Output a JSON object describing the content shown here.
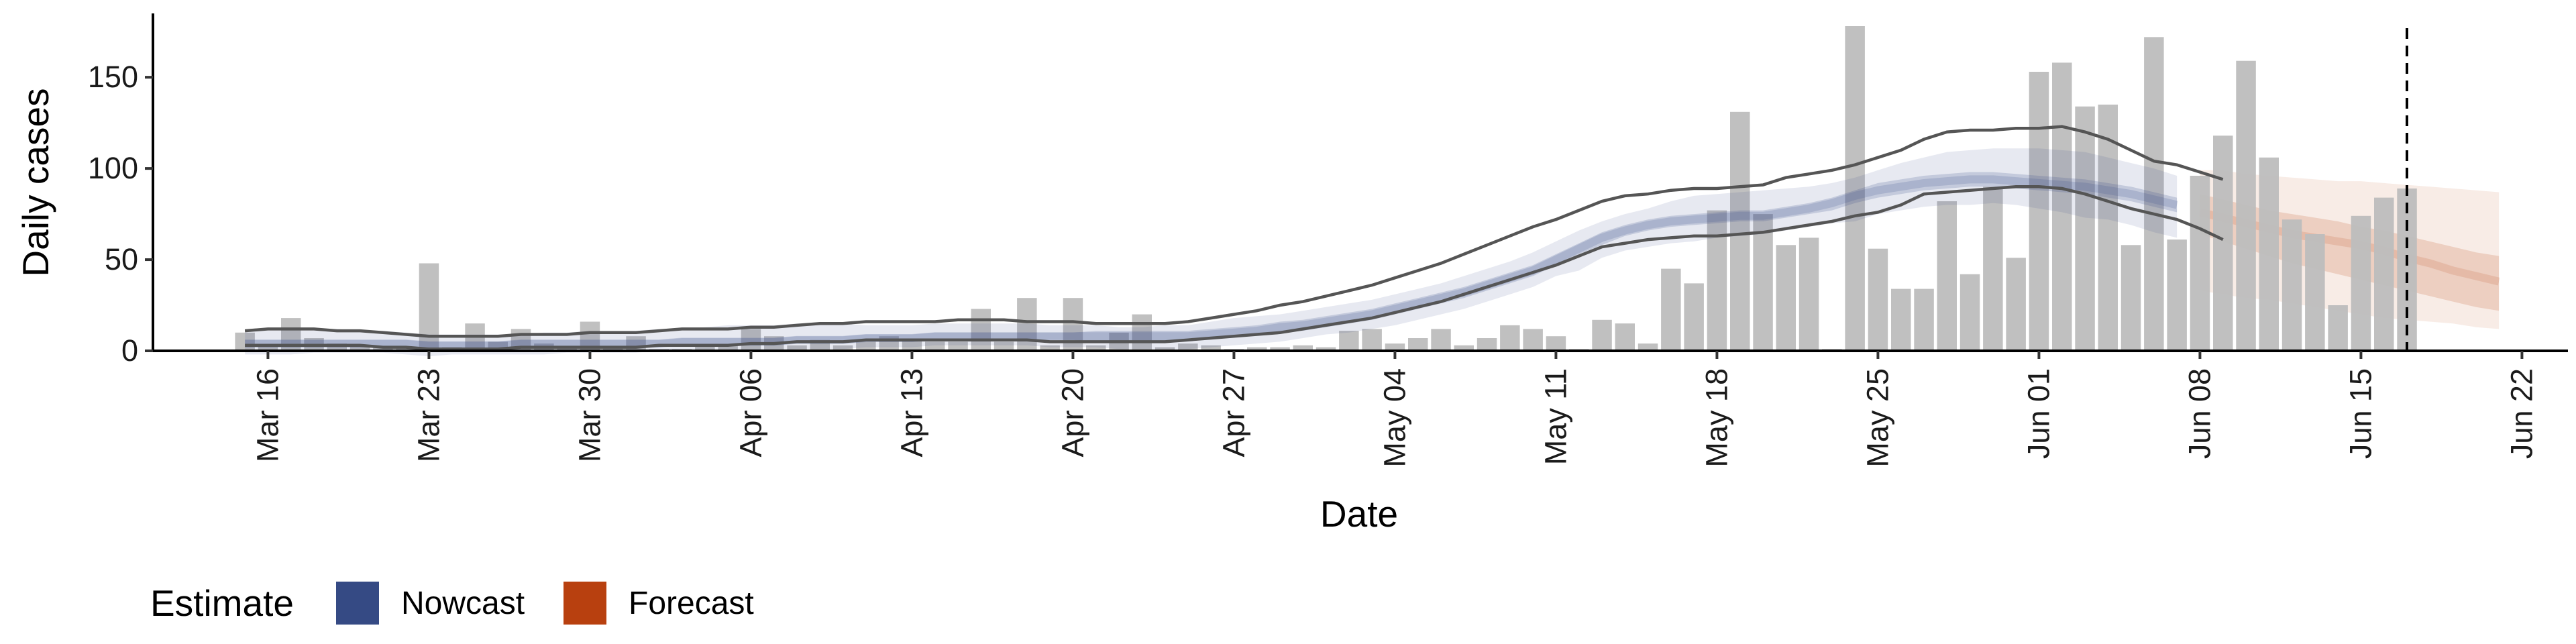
{
  "chart_data": {
    "type": "bar",
    "xlabel": "Date",
    "ylabel": "Daily cases",
    "ylim": [
      0,
      185
    ],
    "yticks": [
      0,
      50,
      100,
      150
    ],
    "xlim": [
      "2020-03-11",
      "2020-06-24"
    ],
    "xticks": [
      "2020-03-16",
      "2020-03-23",
      "2020-03-30",
      "2020-04-06",
      "2020-04-13",
      "2020-04-20",
      "2020-04-27",
      "2020-05-04",
      "2020-05-11",
      "2020-05-18",
      "2020-05-25",
      "2020-06-01",
      "2020-06-08",
      "2020-06-15",
      "2020-06-22"
    ],
    "xtick_labels": [
      "Mar 16",
      "Mar 23",
      "Mar 30",
      "Apr 06",
      "Apr 13",
      "Apr 20",
      "Apr 27",
      "May 04",
      "May 11",
      "May 18",
      "May 25",
      "Jun 01",
      "Jun 08",
      "Jun 15",
      "Jun 22"
    ],
    "grid": false,
    "bar_color": "#bdbdbd",
    "cases": {
      "start_date": "2020-03-15",
      "values": [
        10,
        3,
        18,
        7,
        4,
        3,
        2,
        2,
        48,
        2,
        15,
        5,
        12,
        4,
        2,
        16,
        2,
        8,
        1,
        1,
        3,
        3,
        12,
        8,
        3,
        6,
        3,
        5,
        8,
        6,
        5,
        5,
        23,
        5,
        29,
        3,
        29,
        3,
        10,
        20,
        2,
        4,
        3,
        1,
        2,
        2,
        3,
        2,
        11,
        12,
        4,
        7,
        12,
        3,
        7,
        14,
        12,
        8,
        1,
        17,
        15,
        4,
        45,
        37,
        77,
        131,
        75,
        58,
        62,
        1,
        178,
        56,
        34,
        34,
        82,
        42,
        90,
        51,
        153,
        158,
        134,
        135,
        58,
        172,
        61,
        96,
        118,
        159,
        106,
        72,
        64,
        25,
        74,
        84,
        89
      ]
    },
    "nowcast": {
      "start_date": "2020-03-15",
      "color": "#3a4e8c",
      "median": [
        4,
        4,
        4,
        4,
        4,
        4,
        4,
        4,
        3,
        3,
        3,
        3,
        4,
        4,
        4,
        4,
        4,
        4,
        4,
        5,
        5,
        5,
        5,
        5,
        6,
        6,
        6,
        7,
        7,
        7,
        8,
        8,
        8,
        8,
        8,
        8,
        8,
        8,
        8,
        8,
        8,
        8,
        9,
        10,
        11,
        13,
        14,
        16,
        18,
        20,
        23,
        26,
        29,
        32,
        36,
        40,
        44,
        50,
        56,
        62,
        66,
        69,
        71,
        72,
        73,
        74,
        74,
        76,
        78,
        81,
        85,
        88,
        90,
        92,
        93,
        94,
        94,
        93,
        92,
        91,
        90,
        88,
        86,
        83,
        80
      ],
      "lower90": [
        -2,
        -2,
        -2,
        -1,
        -1,
        -1,
        -1,
        -2,
        -3,
        -2,
        -2,
        -2,
        -2,
        -2,
        -1,
        -1,
        -1,
        -1,
        0,
        1,
        1,
        1,
        0,
        0,
        1,
        1,
        1,
        2,
        2,
        2,
        3,
        3,
        3,
        3,
        3,
        2,
        2,
        2,
        1,
        1,
        1,
        1,
        2,
        3,
        4,
        5,
        7,
        9,
        10,
        12,
        14,
        17,
        20,
        23,
        27,
        31,
        35,
        41,
        44,
        51,
        55,
        57,
        59,
        60,
        62,
        63,
        64,
        66,
        68,
        70,
        71,
        75,
        77,
        79,
        80,
        80,
        81,
        80,
        78,
        76,
        73,
        72,
        69,
        65,
        62
      ],
      "upper90": [
        11,
        12,
        12,
        12,
        12,
        11,
        11,
        10,
        9,
        9,
        9,
        9,
        9,
        10,
        10,
        11,
        11,
        11,
        12,
        12,
        13,
        14,
        14,
        14,
        15,
        15,
        15,
        14,
        14,
        14,
        15,
        15,
        15,
        15,
        15,
        14,
        14,
        14,
        13,
        13,
        14,
        14,
        16,
        18,
        19,
        20,
        22,
        24,
        26,
        28,
        31,
        34,
        37,
        41,
        45,
        49,
        54,
        60,
        66,
        71,
        75,
        78,
        82,
        85,
        86,
        87,
        88,
        89,
        90,
        92,
        95,
        99,
        103,
        106,
        109,
        110,
        111,
        111,
        111,
        110,
        109,
        106,
        103,
        100,
        96
      ],
      "lower30": [
        2,
        2,
        2,
        2,
        2,
        2,
        2,
        2,
        1,
        1,
        1,
        1,
        2,
        2,
        2,
        2,
        2,
        2,
        2,
        3,
        3,
        3,
        3,
        3,
        4,
        4,
        4,
        5,
        5,
        5,
        6,
        6,
        6,
        6,
        6,
        6,
        6,
        5,
        5,
        5,
        5,
        6,
        7,
        8,
        9,
        10,
        11,
        13,
        15,
        17,
        20,
        23,
        26,
        29,
        33,
        37,
        41,
        47,
        53,
        58,
        63,
        66,
        68,
        69,
        70,
        71,
        71,
        73,
        75,
        77,
        81,
        84,
        86,
        88,
        89,
        90,
        90,
        89,
        88,
        87,
        86,
        84,
        82,
        79,
        76
      ],
      "upper30": [
        6,
        6,
        6,
        6,
        6,
        6,
        6,
        6,
        5,
        5,
        5,
        5,
        6,
        6,
        6,
        6,
        6,
        6,
        6,
        7,
        7,
        7,
        7,
        7,
        8,
        8,
        8,
        9,
        9,
        9,
        10,
        10,
        10,
        10,
        10,
        10,
        10,
        11,
        11,
        11,
        11,
        11,
        12,
        13,
        14,
        16,
        17,
        19,
        21,
        23,
        26,
        29,
        32,
        35,
        39,
        43,
        47,
        53,
        59,
        65,
        69,
        72,
        74,
        75,
        76,
        77,
        77,
        79,
        81,
        84,
        88,
        92,
        94,
        96,
        97,
        98,
        98,
        97,
        96,
        95,
        94,
        92,
        90,
        87,
        84
      ]
    },
    "observed_bounds": {
      "start_date": "2020-03-15",
      "color": "#555555",
      "upper": [
        11,
        12,
        12,
        12,
        11,
        11,
        10,
        9,
        8,
        8,
        8,
        8,
        9,
        9,
        9,
        10,
        10,
        10,
        11,
        12,
        12,
        12,
        13,
        13,
        14,
        15,
        15,
        16,
        16,
        16,
        16,
        17,
        17,
        17,
        16,
        16,
        16,
        15,
        15,
        15,
        15,
        16,
        18,
        20,
        22,
        25,
        27,
        30,
        33,
        36,
        40,
        44,
        48,
        53,
        58,
        63,
        68,
        72,
        77,
        82,
        85,
        86,
        88,
        89,
        89,
        90,
        91,
        95,
        97,
        99,
        102,
        106,
        110,
        116,
        120,
        121,
        121,
        122,
        122,
        123,
        120,
        116,
        110,
        104,
        102,
        98,
        94
      ],
      "lower": [
        3,
        3,
        3,
        3,
        3,
        3,
        2,
        2,
        1,
        1,
        1,
        1,
        2,
        2,
        2,
        2,
        2,
        2,
        3,
        3,
        3,
        3,
        4,
        4,
        5,
        5,
        5,
        6,
        6,
        6,
        6,
        6,
        6,
        6,
        6,
        5,
        5,
        5,
        5,
        5,
        5,
        6,
        7,
        8,
        9,
        10,
        12,
        14,
        16,
        18,
        21,
        24,
        27,
        31,
        35,
        39,
        43,
        47,
        52,
        57,
        59,
        61,
        62,
        63,
        63,
        64,
        65,
        67,
        69,
        71,
        74,
        76,
        80,
        86,
        87,
        88,
        89,
        90,
        90,
        89,
        86,
        82,
        78,
        75,
        72,
        67,
        61
      ]
    },
    "forecast": {
      "start_date": "2020-06-08",
      "color": "#b6400c",
      "median": [
        76,
        73,
        70,
        67,
        64,
        62,
        60,
        58,
        55,
        51,
        48,
        44,
        41,
        38
      ],
      "lower90": [
        33,
        31,
        29,
        28,
        26,
        24,
        22,
        20,
        18,
        17,
        16,
        15,
        13,
        12
      ],
      "upper90": [
        99,
        99,
        97,
        96,
        95,
        94,
        93,
        93,
        92,
        91,
        90,
        89,
        88,
        87
      ],
      "lower30": [
        64,
        60,
        56,
        52,
        48,
        45,
        42,
        39,
        36,
        33,
        30,
        27,
        24,
        22
      ],
      "upper30": [
        86,
        83,
        80,
        77,
        75,
        73,
        71,
        68,
        66,
        63,
        60,
        57,
        54,
        52
      ]
    },
    "forecast_start_line": "2020-06-17"
  },
  "legend": {
    "title": "Estimate",
    "items": [
      {
        "label": "Nowcast",
        "color": "#354a84"
      },
      {
        "label": "Forecast",
        "color": "#b8400f"
      }
    ]
  }
}
